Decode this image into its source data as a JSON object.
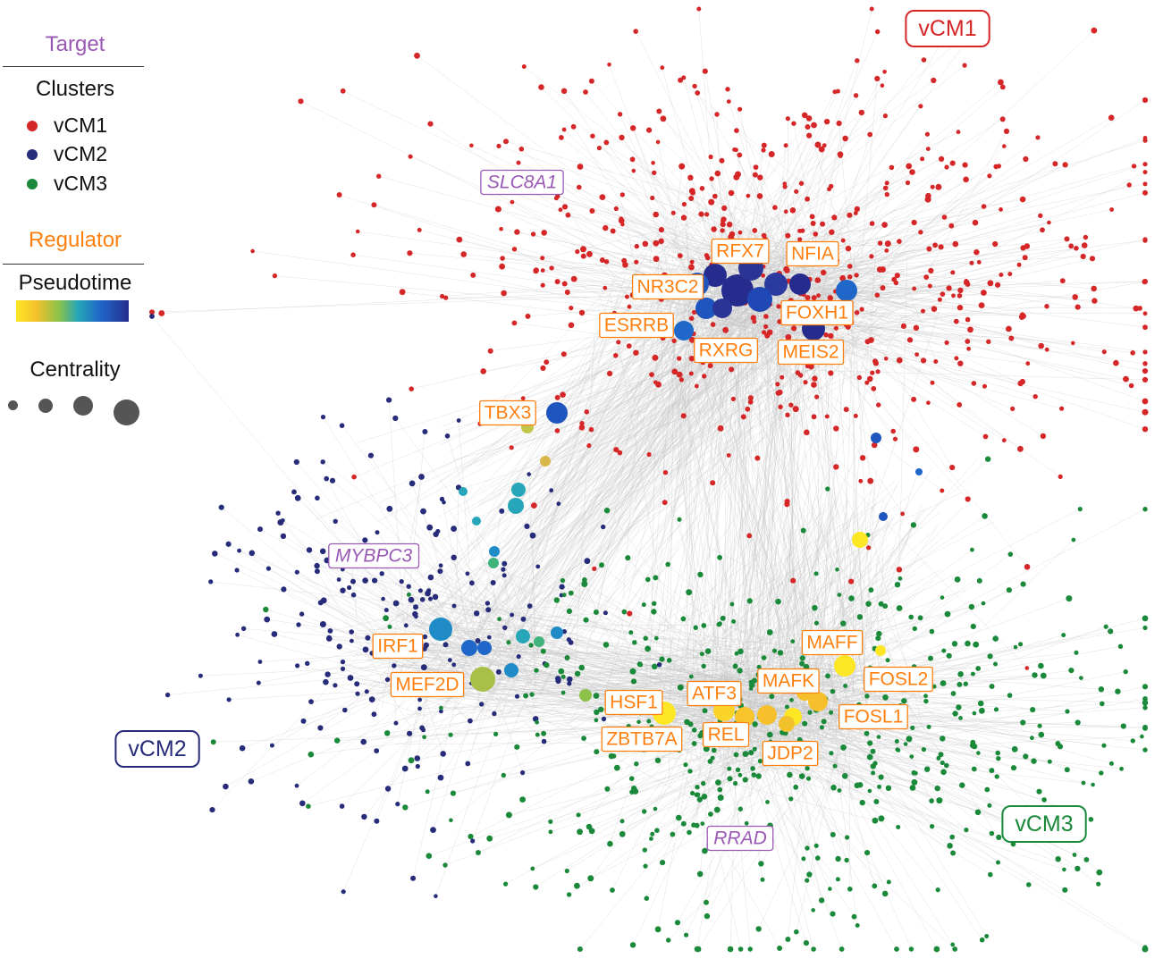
{
  "legend": {
    "target_label": "Target",
    "clusters_label": "Clusters",
    "regulator_label": "Regulator",
    "pseudotime_label": "Pseudotime",
    "centrality_label": "Centrality",
    "cluster_items": [
      {
        "label": "vCM1",
        "color": "#d62728"
      },
      {
        "label": "vCM2",
        "color": "#262c7a"
      },
      {
        "label": "vCM3",
        "color": "#1a8a3a"
      }
    ],
    "target_color": "#9a59b5",
    "regulator_color": "#ff7f0e"
  },
  "cluster_labels": [
    {
      "id": "vcm1",
      "text": "vCM1",
      "color": "#d62728"
    },
    {
      "id": "vcm2",
      "text": "vCM2",
      "color": "#262c7a"
    },
    {
      "id": "vcm3",
      "text": "vCM3",
      "color": "#1a8a3a"
    }
  ],
  "targets": [
    "SLC8A1",
    "MYBPC3",
    "RRAD"
  ],
  "regulators": [
    "RFX7",
    "NFIA",
    "NR3C2",
    "FOXH1",
    "ESRRB",
    "RXRG",
    "MEIS2",
    "TBX3",
    "IRF1",
    "MEF2D",
    "MAFF",
    "FOSL2",
    "MAFK",
    "ATF3",
    "HSF1",
    "FOSL1",
    "REL",
    "ZBTB7A",
    "JDP2"
  ]
}
